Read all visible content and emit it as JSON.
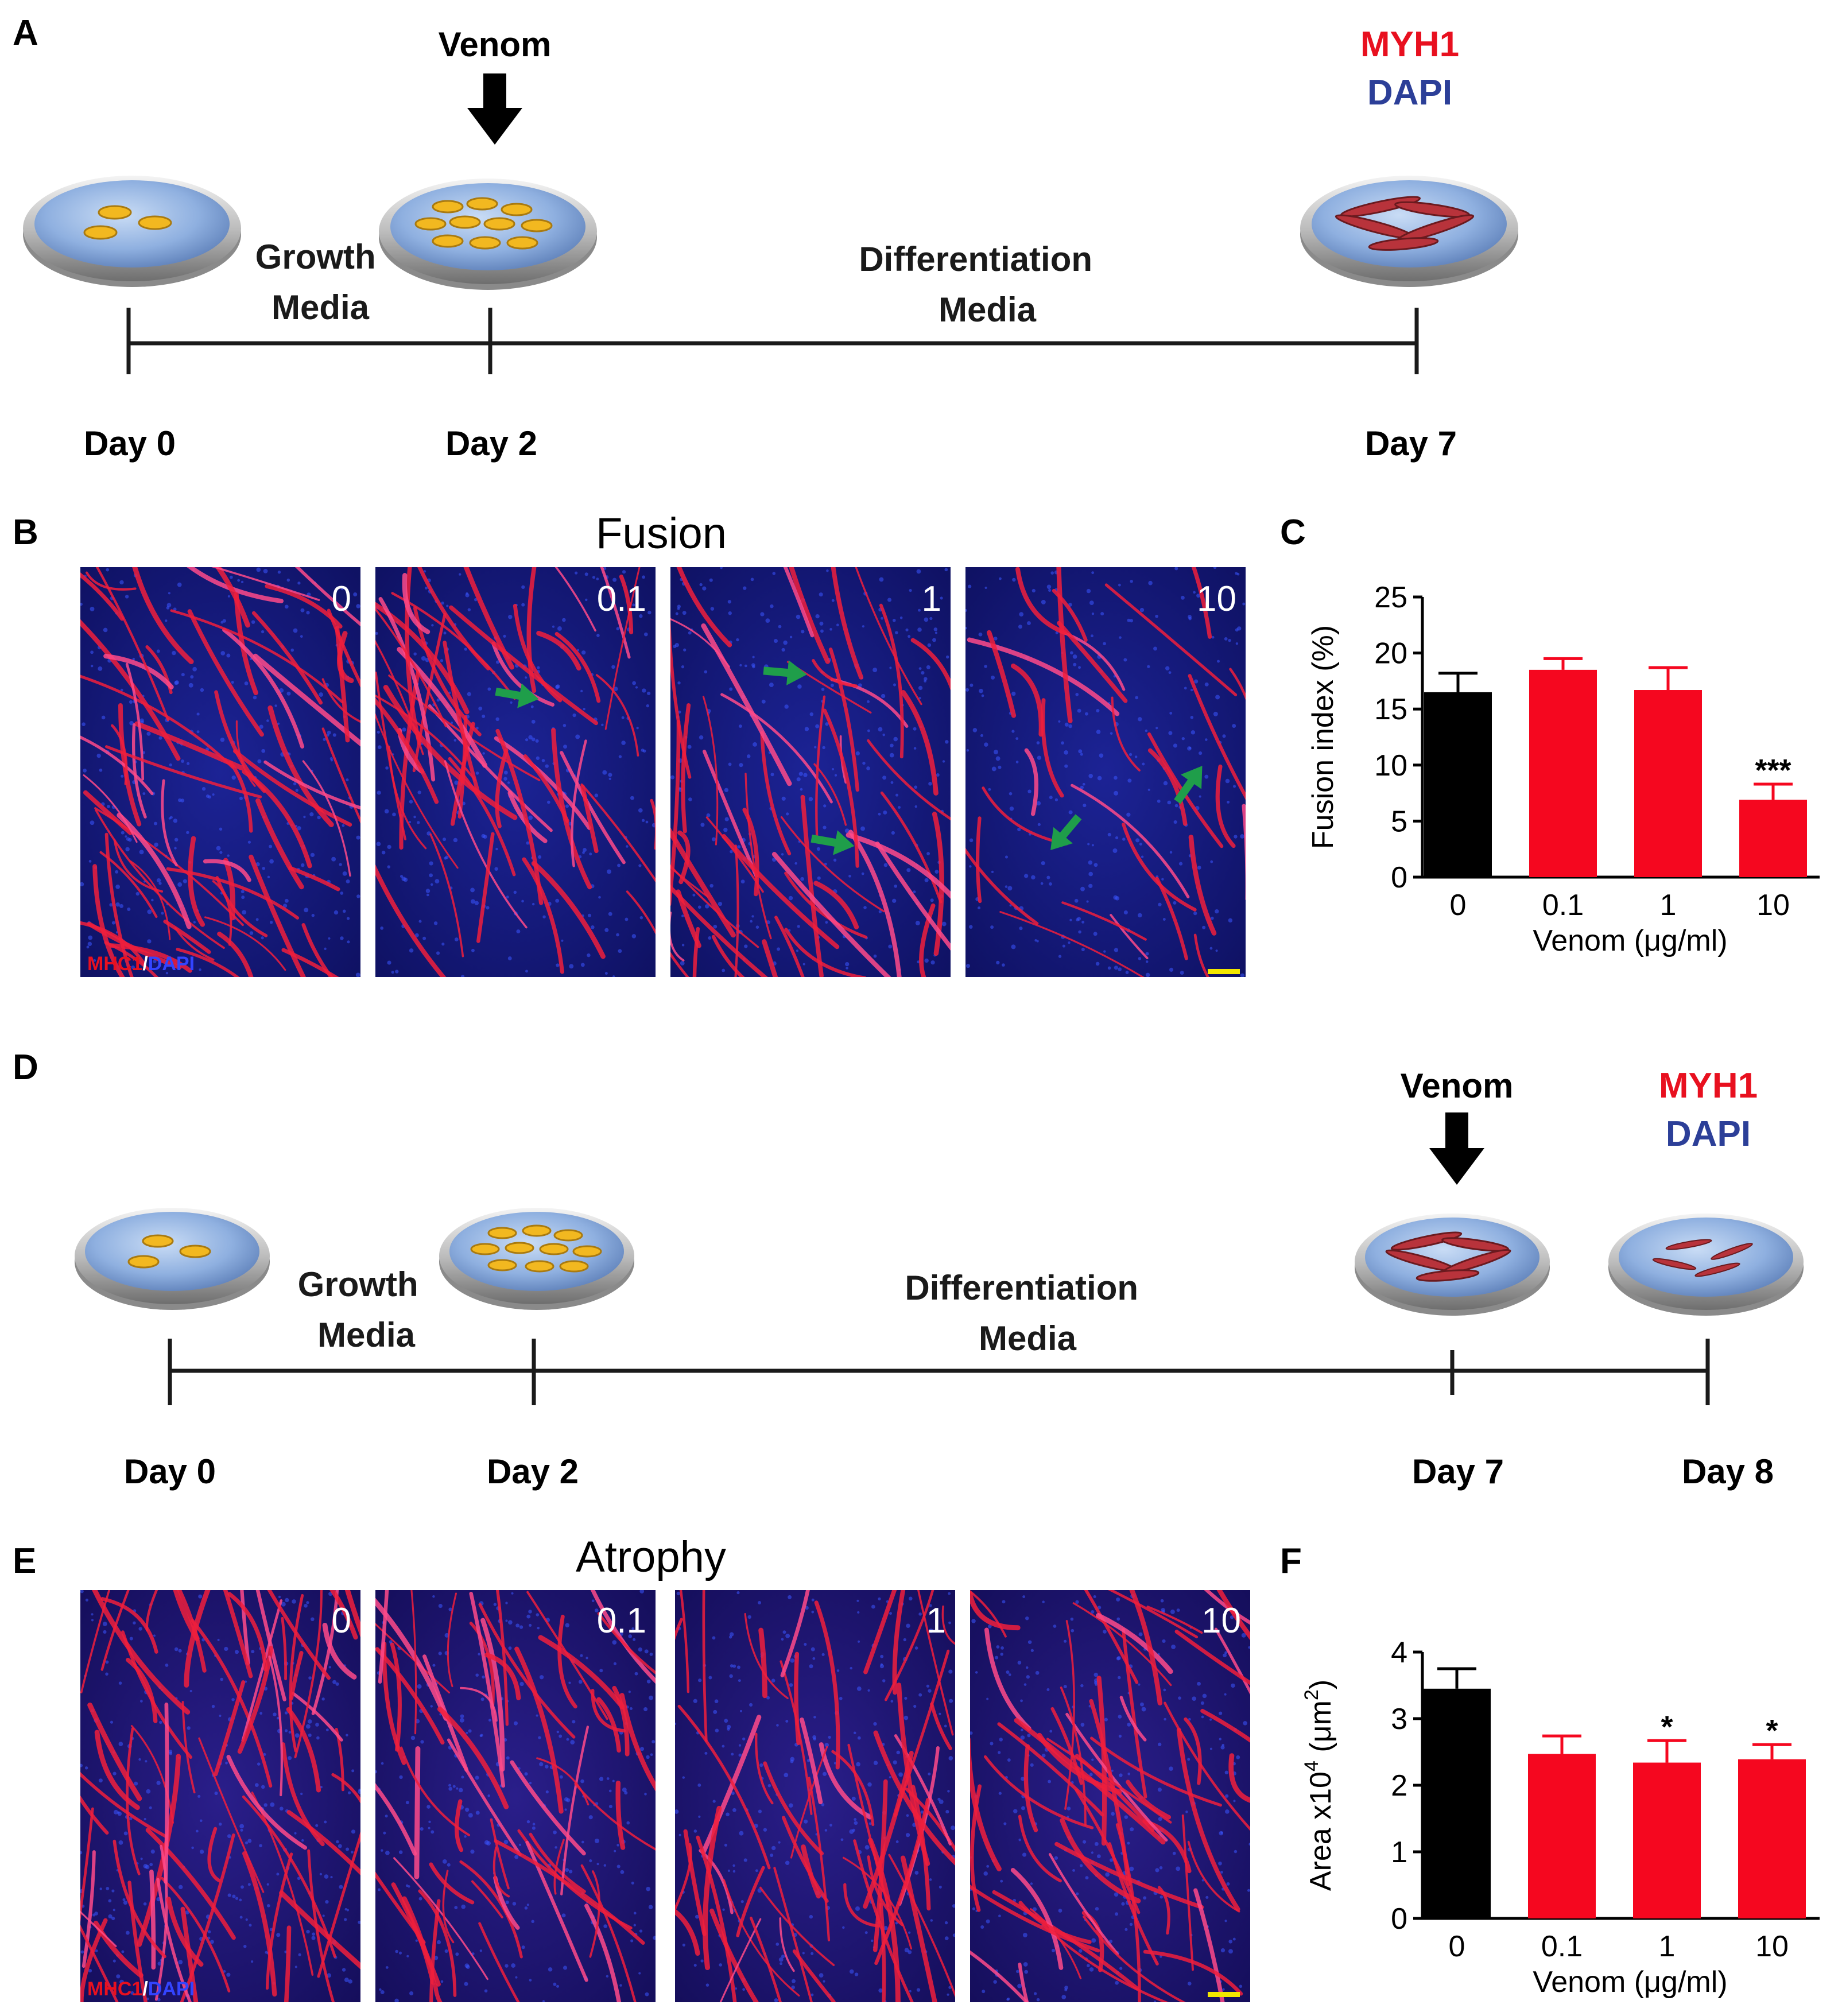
{
  "colors": {
    "myh1": "#e8101f",
    "dapi": "#2c3f98",
    "bar_control": "#000000",
    "bar_venom": "#f5071f",
    "arrow_green": "#1f9e4a",
    "scalebar": "#f2e600",
    "dish_blue": "#8fb0e0",
    "cell_yellow": "#f2b820",
    "myotube_red": "#b8333b"
  },
  "panel_a": {
    "letter": "A",
    "venom_label": "Venom",
    "myh1_label": "MYH1",
    "dapi_label": "DAPI",
    "growth_line1": "Growth",
    "growth_line2": "Media",
    "diff_line1": "Differentiation",
    "diff_line2": "Media",
    "days": [
      "Day 0",
      "Day 2",
      "Day 7"
    ]
  },
  "panel_b": {
    "letter": "B",
    "title": "Fusion",
    "concentrations": [
      "0",
      "0.1",
      "1",
      "10"
    ],
    "stain_label_red": "MHC1",
    "stain_label_sep": "/",
    "stain_label_blue": "DAPI"
  },
  "panel_c": {
    "letter": "C"
  },
  "panel_d": {
    "letter": "D",
    "venom_label": "Venom",
    "myh1_label": "MYH1",
    "dapi_label": "DAPI",
    "growth_line1": "Growth",
    "growth_line2": "Media",
    "diff_line1": "Differentiation",
    "diff_line2": "Media",
    "days": [
      "Day 0",
      "Day 2",
      "Day 7",
      "Day 8"
    ]
  },
  "panel_e": {
    "letter": "E",
    "title": "Atrophy",
    "concentrations": [
      "0",
      "0.1",
      "1",
      "10"
    ],
    "stain_label_red": "MHC1",
    "stain_label_sep": "/",
    "stain_label_blue": "DAPI"
  },
  "panel_f": {
    "letter": "F"
  },
  "chart_data": [
    {
      "id": "C",
      "type": "bar",
      "categories": [
        "0",
        "0.1",
        "1",
        "10"
      ],
      "values": [
        16.5,
        18.5,
        16.7,
        6.9
      ],
      "errors": [
        1.7,
        1.0,
        2.0,
        1.4
      ],
      "significance": [
        "",
        "",
        "",
        "***"
      ],
      "bar_colors": [
        "#000000",
        "#f5071f",
        "#f5071f",
        "#f5071f"
      ],
      "ylabel": "Fusion index (%)",
      "xlabel": "Venom (μg/ml)",
      "yticks": [
        "0",
        "5",
        "10",
        "15",
        "20",
        "25"
      ],
      "ylim": [
        0,
        25
      ]
    },
    {
      "id": "F",
      "type": "bar",
      "categories": [
        "0",
        "0.1",
        "1",
        "10"
      ],
      "values": [
        3.45,
        2.47,
        2.34,
        2.39
      ],
      "errors": [
        0.3,
        0.27,
        0.33,
        0.22
      ],
      "significance": [
        "",
        "",
        "*",
        "*"
      ],
      "bar_colors": [
        "#000000",
        "#f5071f",
        "#f5071f",
        "#f5071f"
      ],
      "ylabel_pre": "Area x10",
      "ylabel_sup1": "4",
      "ylabel_mid": " (μm",
      "ylabel_sup2": "2",
      "ylabel_post": ")",
      "xlabel": "Venom (μg/ml)",
      "yticks": [
        "0",
        "1",
        "2",
        "3",
        "4"
      ],
      "ylim": [
        0,
        4
      ]
    }
  ]
}
